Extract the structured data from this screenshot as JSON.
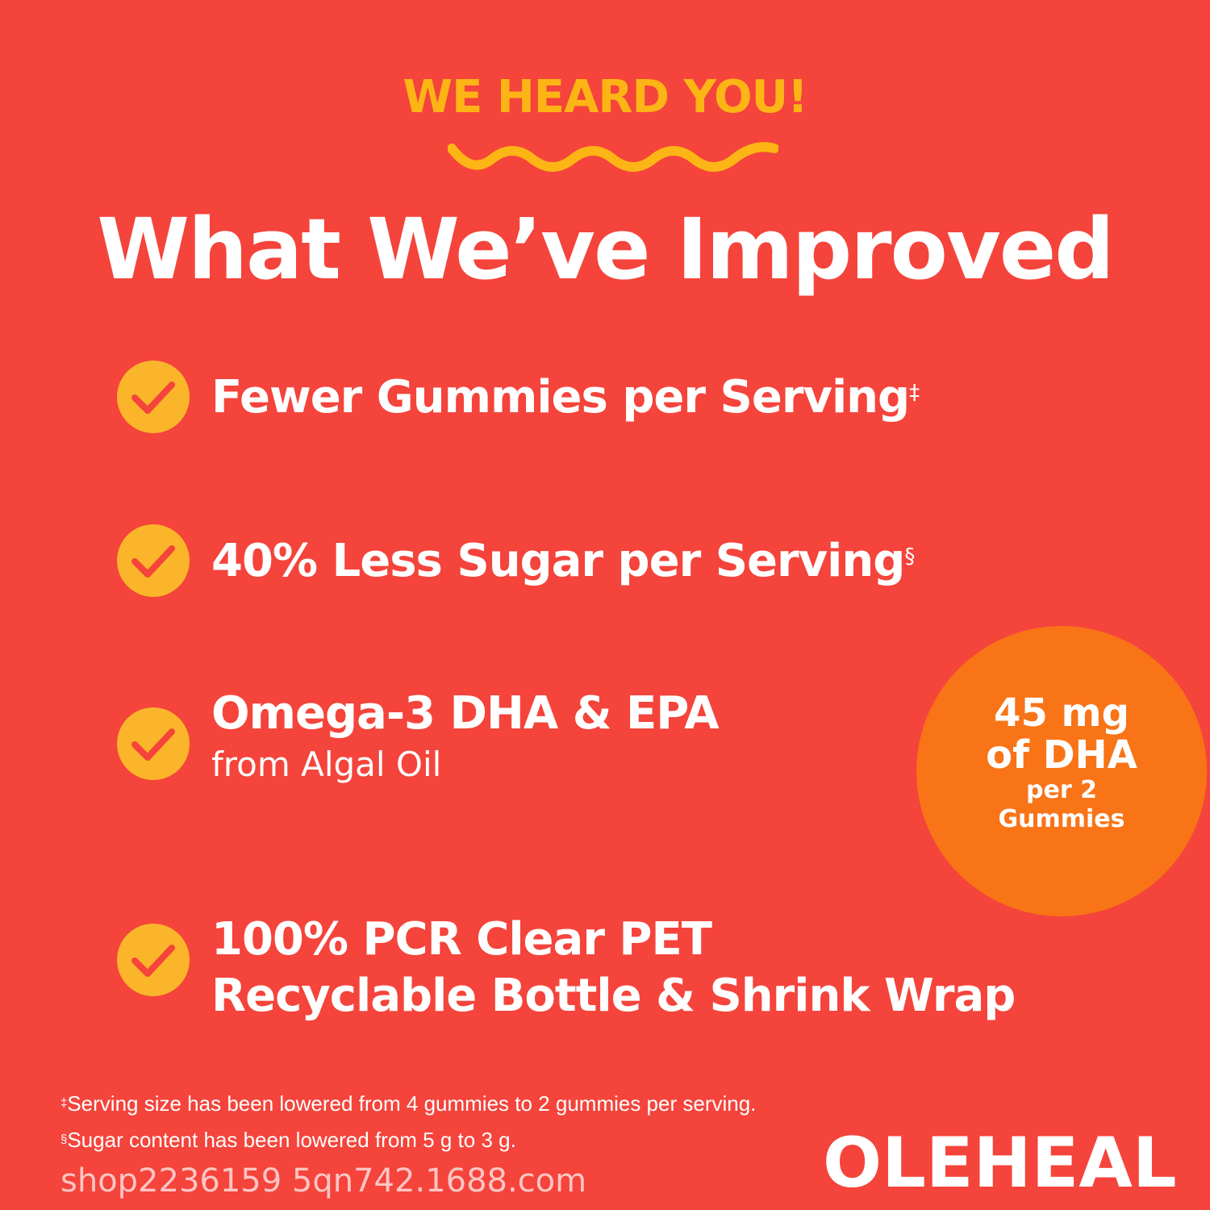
{
  "header": {
    "kicker": "WE HEARD YOU!",
    "title": "What We’ve Improved"
  },
  "features": [
    {
      "text": "Fewer Gummies per Serving",
      "mark": "‡"
    },
    {
      "text": "40% Less Sugar per Serving",
      "mark": "§"
    },
    {
      "text": "Omega-3 DHA & EPA",
      "sub": "from Algal Oil"
    },
    {
      "text": "100% PCR Clear PET",
      "text2": "Recyclable Bottle & Shrink Wrap"
    }
  ],
  "badge": {
    "line1": "45 mg",
    "line2": "of DHA",
    "line3": "per 2",
    "line4": "Gummies"
  },
  "footnotes": [
    {
      "mark": "‡",
      "text": "Serving size has been lowered from 4 gummies to 2 gummies per serving."
    },
    {
      "mark": "§",
      "text": "Sugar content has been lowered from 5 g to 3 g."
    }
  ],
  "brand": {
    "logo": "OLEHEAL"
  },
  "watermark": "shop2236159 5qn742.1688.com",
  "colors": {
    "background": "#F4443B",
    "accent_yellow": "#FDB515",
    "check_circle": "#FBB52A",
    "badge": "#F87417"
  },
  "icons": [
    "checkmark-icon",
    "wave-decoration"
  ]
}
